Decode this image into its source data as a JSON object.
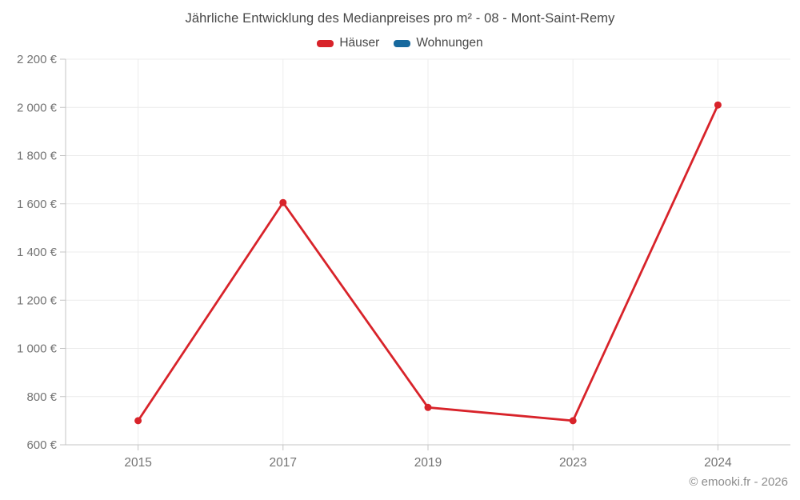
{
  "chart": {
    "title": "Jährliche Entwicklung des Medianpreises pro m² - 08 - Mont-Saint-Remy",
    "footer": "© emooki.fr - 2026",
    "legend": [
      {
        "label": "Häuser",
        "color": "#d8232a"
      },
      {
        "label": "Wohnungen",
        "color": "#17699e"
      }
    ]
  },
  "chart_data": {
    "type": "line",
    "title": "Jährliche Entwicklung des Medianpreises pro m² - 08 - Mont-Saint-Remy",
    "categories": [
      "2015",
      "2017",
      "2019",
      "2023",
      "2024"
    ],
    "series": [
      {
        "name": "Häuser",
        "color": "#d8232a",
        "values": [
          700,
          1605,
          755,
          700,
          2010
        ]
      },
      {
        "name": "Wohnungen",
        "color": "#17699e",
        "values": []
      }
    ],
    "xlabel": "",
    "ylabel": "",
    "ylim": [
      600,
      2200
    ],
    "ytick_step": 200,
    "ytick_suffix": " €",
    "grid": true,
    "legend_position": "top",
    "colors": {
      "gridline": "#ececec",
      "axis_line": "#c4c4c4",
      "tick_label": "#737373"
    }
  }
}
